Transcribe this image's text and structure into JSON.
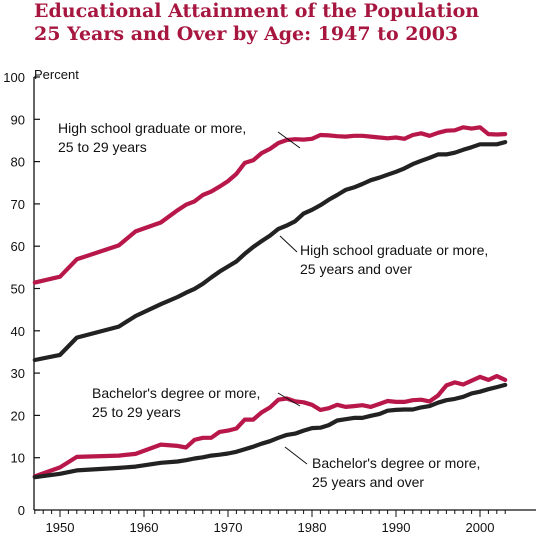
{
  "title": {
    "line1": "Educational Attainment of the Population",
    "line2": "25 Years and Over by Age:  1947 to 2003"
  },
  "chart_data": {
    "type": "line",
    "title": "Educational Attainment of the Population 25 Years and Over by Age:  1947 to 2003",
    "ylabel": "Percent",
    "xlim": [
      1947,
      2003
    ],
    "ylim": [
      0,
      100
    ],
    "x_ticks": [
      1950,
      1960,
      1970,
      1980,
      1990,
      2000
    ],
    "y_ticks": [
      0,
      10,
      20,
      30,
      40,
      50,
      60,
      70,
      80,
      90,
      100
    ],
    "grid": false,
    "legend": "none",
    "colors": {
      "red": "#b8174a",
      "black": "#222222",
      "title": "#a6163f"
    },
    "series": [
      {
        "name": "High school graduate or more, 25 to 29 years",
        "color": "red",
        "label_lines": [
          "High school graduate or more,",
          "25 to 29 years"
        ],
        "x": [
          1947,
          1950,
          1952,
          1957,
          1959,
          1962,
          1964,
          1965,
          1966,
          1967,
          1968,
          1969,
          1970,
          1971,
          1972,
          1973,
          1974,
          1975,
          1976,
          1977,
          1978,
          1979,
          1980,
          1981,
          1982,
          1983,
          1984,
          1985,
          1986,
          1987,
          1988,
          1989,
          1990,
          1991,
          1992,
          1993,
          1994,
          1995,
          1996,
          1997,
          1998,
          1999,
          2000,
          2001,
          2002,
          2003
        ],
        "y": [
          51.4,
          52.8,
          56.9,
          60.2,
          63.5,
          65.6,
          68.5,
          69.8,
          70.6,
          72.1,
          72.9,
          74.1,
          75.4,
          77.1,
          79.7,
          80.3,
          82.0,
          83.0,
          84.4,
          85.1,
          85.3,
          85.2,
          85.4,
          86.3,
          86.2,
          86.0,
          85.9,
          86.1,
          86.1,
          85.9,
          85.7,
          85.5,
          85.7,
          85.4,
          86.3,
          86.7,
          86.1,
          86.8,
          87.3,
          87.4,
          88.1,
          87.8,
          88.1,
          86.5,
          86.4,
          86.5
        ]
      },
      {
        "name": "High school graduate or more, 25 years and over",
        "color": "black",
        "label_lines": [
          "High school graduate or more,",
          "25 years and over"
        ],
        "x": [
          1947,
          1950,
          1952,
          1957,
          1959,
          1962,
          1964,
          1965,
          1966,
          1967,
          1968,
          1969,
          1970,
          1971,
          1972,
          1973,
          1974,
          1975,
          1976,
          1977,
          1978,
          1979,
          1980,
          1981,
          1982,
          1983,
          1984,
          1985,
          1986,
          1987,
          1988,
          1989,
          1990,
          1991,
          1992,
          1993,
          1994,
          1995,
          1996,
          1997,
          1998,
          1999,
          2000,
          2001,
          2002,
          2003
        ],
        "y": [
          33.1,
          34.3,
          38.4,
          41.0,
          43.5,
          46.3,
          48.0,
          49.0,
          49.9,
          51.1,
          52.6,
          54.0,
          55.2,
          56.4,
          58.2,
          59.8,
          61.2,
          62.5,
          64.1,
          64.9,
          65.9,
          67.7,
          68.6,
          69.7,
          71.0,
          72.1,
          73.3,
          73.9,
          74.7,
          75.6,
          76.2,
          76.9,
          77.6,
          78.4,
          79.4,
          80.2,
          80.9,
          81.7,
          81.7,
          82.1,
          82.8,
          83.4,
          84.1,
          84.1,
          84.1,
          84.6
        ]
      },
      {
        "name": "Bachelor's degree or more, 25 to 29 years",
        "color": "red",
        "label_lines": [
          "Bachelor's degree or more,",
          "25 to 29 years"
        ],
        "x": [
          1947,
          1950,
          1952,
          1957,
          1959,
          1962,
          1964,
          1965,
          1966,
          1967,
          1968,
          1969,
          1970,
          1971,
          1972,
          1973,
          1974,
          1975,
          1976,
          1977,
          1978,
          1979,
          1980,
          1981,
          1982,
          1983,
          1984,
          1985,
          1986,
          1987,
          1988,
          1989,
          1990,
          1991,
          1992,
          1993,
          1994,
          1995,
          1996,
          1997,
          1998,
          1999,
          2000,
          2001,
          2002,
          2003
        ],
        "y": [
          5.6,
          7.7,
          10.2,
          10.5,
          10.9,
          13.1,
          12.8,
          12.4,
          14.2,
          14.7,
          14.7,
          16.1,
          16.4,
          16.9,
          19.0,
          19.0,
          20.7,
          21.9,
          23.7,
          24.0,
          23.3,
          23.1,
          22.5,
          21.3,
          21.7,
          22.5,
          22.0,
          22.2,
          22.4,
          22.0,
          22.7,
          23.4,
          23.2,
          23.2,
          23.6,
          23.7,
          23.3,
          24.7,
          27.1,
          27.8,
          27.3,
          28.2,
          29.1,
          28.4,
          29.3,
          28.4
        ]
      },
      {
        "name": "Bachelor's degree or more, 25 years and over",
        "color": "black",
        "label_lines": [
          "Bachelor's degree or more,",
          "25 years and over"
        ],
        "x": [
          1947,
          1950,
          1952,
          1957,
          1959,
          1962,
          1964,
          1965,
          1966,
          1967,
          1968,
          1969,
          1970,
          1971,
          1972,
          1973,
          1974,
          1975,
          1976,
          1977,
          1978,
          1979,
          1980,
          1981,
          1982,
          1983,
          1984,
          1985,
          1986,
          1987,
          1988,
          1989,
          1990,
          1991,
          1992,
          1993,
          1994,
          1995,
          1996,
          1997,
          1998,
          1999,
          2000,
          2001,
          2002,
          2003
        ],
        "y": [
          5.4,
          6.2,
          7.0,
          7.6,
          7.9,
          8.8,
          9.1,
          9.4,
          9.8,
          10.1,
          10.5,
          10.7,
          11.0,
          11.4,
          12.0,
          12.6,
          13.3,
          13.9,
          14.7,
          15.4,
          15.7,
          16.4,
          17.0,
          17.1,
          17.7,
          18.8,
          19.1,
          19.4,
          19.4,
          19.9,
          20.3,
          21.1,
          21.3,
          21.4,
          21.4,
          21.9,
          22.2,
          23.0,
          23.6,
          23.9,
          24.4,
          25.2,
          25.6,
          26.2,
          26.7,
          27.2
        ]
      }
    ]
  }
}
